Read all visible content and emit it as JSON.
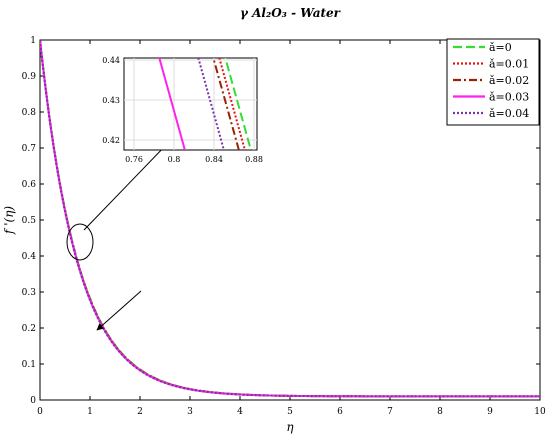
{
  "chart_data": {
    "type": "line",
    "title": "γ Al₂O₃ - Water",
    "xlabel": "η",
    "ylabel": "f '(η)",
    "xlim": [
      0,
      10
    ],
    "ylim": [
      0,
      1
    ],
    "xticks": [
      "0",
      "1",
      "2",
      "3",
      "4",
      "5",
      "6",
      "7",
      "8",
      "9",
      "10"
    ],
    "yticks": [
      "0",
      "0.1",
      "0.2",
      "0.3",
      "0.4",
      "0.5",
      "0.6",
      "0.7",
      "0.8",
      "0.9",
      "1"
    ],
    "grid": false,
    "legend_position": "top-right",
    "model": {
      "asymptote": 0.01,
      "decay": 1.3
    },
    "series": [
      {
        "name": "ǎ=0",
        "color": "#33dd33",
        "dash": "9,4",
        "inset_x_at_043": 0.863
      },
      {
        "name": "ǎ=0.01",
        "color": "#ee1111",
        "dash": "2,2",
        "inset_x_at_043": 0.857
      },
      {
        "name": "ǎ=0.02",
        "color": "#992200",
        "dash": "8,3,2,3",
        "inset_x_at_043": 0.851
      },
      {
        "name": "ǎ=0.03",
        "color": "#ff22ee",
        "dash": "",
        "inset_x_at_043": 0.797
      },
      {
        "name": "ǎ=0.04",
        "color": "#7733aa",
        "dash": "2,2",
        "inset_x_at_043": 0.836
      }
    ],
    "inset": {
      "xlim": [
        0.75,
        0.883
      ],
      "ylim": [
        0.4175,
        0.4405
      ],
      "xticks": [
        "0.76",
        "0.8",
        "0.84",
        "0.88"
      ],
      "yticks": [
        "0.42",
        "0.43",
        "0.44"
      ],
      "grid": true,
      "slope": -0.9
    }
  }
}
